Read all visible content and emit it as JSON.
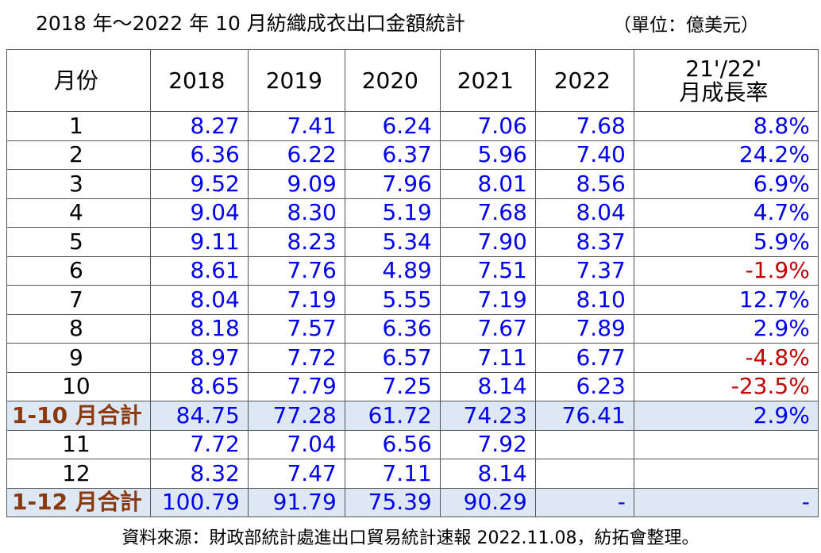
{
  "title": "2018 年～2022 年 10 月紡織成衣出口金額統計",
  "unit": "（單位：億美元）",
  "table": {
    "header": [
      "月份",
      "2018",
      "2019",
      "2020",
      "2021",
      "2022",
      [
        "21'/22'",
        "月成長率"
      ]
    ],
    "rows": [
      {
        "label": "1",
        "cells": [
          "8.27",
          "7.41",
          "6.24",
          "7.06",
          "7.68",
          "8.8%"
        ]
      },
      {
        "label": "2",
        "cells": [
          "6.36",
          "6.22",
          "6.37",
          "5.96",
          "7.40",
          "24.2%"
        ]
      },
      {
        "label": "3",
        "cells": [
          "9.52",
          "9.09",
          "7.96",
          "8.01",
          "8.56",
          "6.9%"
        ]
      },
      {
        "label": "4",
        "cells": [
          "9.04",
          "8.30",
          "5.19",
          "7.68",
          "8.04",
          "4.7%"
        ]
      },
      {
        "label": "5",
        "cells": [
          "9.11",
          "8.23",
          "5.34",
          "7.90",
          "8.37",
          "5.9%"
        ]
      },
      {
        "label": "6",
        "cells": [
          "8.61",
          "7.76",
          "4.89",
          "7.51",
          "7.37",
          "-1.9%"
        ]
      },
      {
        "label": "7",
        "cells": [
          "8.04",
          "7.19",
          "5.55",
          "7.19",
          "8.10",
          "12.7%"
        ]
      },
      {
        "label": "8",
        "cells": [
          "8.18",
          "7.57",
          "6.36",
          "7.67",
          "7.89",
          "2.9%"
        ]
      },
      {
        "label": "9",
        "cells": [
          "8.97",
          "7.72",
          "6.57",
          "7.11",
          "6.77",
          "-4.8%"
        ]
      },
      {
        "label": "10",
        "cells": [
          "8.65",
          "7.79",
          "7.25",
          "8.14",
          "6.23",
          "-23.5%"
        ]
      },
      {
        "label": "1-10 月合計",
        "total": true,
        "cells": [
          "84.75",
          "77.28",
          "61.72",
          "74.23",
          "76.41",
          "2.9%"
        ]
      },
      {
        "label": "11",
        "cells": [
          "7.72",
          "7.04",
          "6.56",
          "7.92",
          null,
          null
        ]
      },
      {
        "label": "12",
        "cells": [
          "8.32",
          "7.47",
          "7.11",
          "8.14",
          null,
          null
        ]
      },
      {
        "label": "1-12 月合計",
        "total": true,
        "cells": [
          "100.79",
          "91.79",
          "75.39",
          "90.29",
          "-",
          "-"
        ]
      }
    ]
  },
  "source": "資料來源：財政部統計處進出口貿易統計速報 2022.11.08，紡拓會整理。"
}
